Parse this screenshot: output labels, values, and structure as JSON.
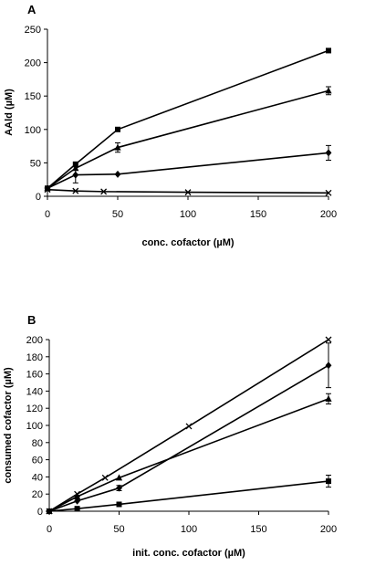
{
  "chart_data": [
    {
      "panel": "A",
      "type": "line",
      "xlabel": "conc. cofactor (µM)",
      "ylabel": "AAld (µM)",
      "xlim": [
        0,
        200
      ],
      "ylim": [
        0,
        250
      ],
      "xticks": [
        0,
        50,
        100,
        150,
        200
      ],
      "yticks": [
        0,
        50,
        100,
        150,
        200,
        250
      ],
      "grid": false,
      "series": [
        {
          "marker": "square",
          "points": [
            [
              0,
              12
            ],
            [
              20,
              48
            ],
            [
              50,
              100
            ],
            [
              200,
              218
            ]
          ],
          "errors": [
            0,
            0,
            0,
            0
          ]
        },
        {
          "marker": "triangle",
          "points": [
            [
              0,
              12
            ],
            [
              20,
              42
            ],
            [
              50,
              73
            ],
            [
              200,
              158
            ]
          ],
          "errors": [
            0,
            0,
            7,
            6
          ]
        },
        {
          "marker": "diamond",
          "points": [
            [
              0,
              12
            ],
            [
              20,
              32
            ],
            [
              50,
              33
            ],
            [
              200,
              65
            ]
          ],
          "errors": [
            0,
            12,
            0,
            11
          ]
        },
        {
          "marker": "x",
          "points": [
            [
              0,
              10
            ],
            [
              20,
              8
            ],
            [
              40,
              7
            ],
            [
              100,
              6
            ],
            [
              200,
              5
            ]
          ],
          "errors": [
            0,
            0,
            0,
            0,
            0
          ]
        }
      ]
    },
    {
      "panel": "B",
      "type": "line",
      "xlabel": "init. conc. cofactor (µM)",
      "ylabel": "consumed cofactor (µM)",
      "xlim": [
        0,
        200
      ],
      "ylim": [
        0,
        200
      ],
      "xticks": [
        0,
        50,
        100,
        150,
        200
      ],
      "yticks": [
        0,
        20,
        40,
        60,
        80,
        100,
        120,
        140,
        160,
        180,
        200
      ],
      "grid": false,
      "series": [
        {
          "marker": "x",
          "points": [
            [
              0,
              0
            ],
            [
              20,
              20
            ],
            [
              40,
              39
            ],
            [
              100,
              99
            ],
            [
              200,
              200
            ]
          ],
          "errors": [
            0,
            0,
            0,
            0,
            0
          ]
        },
        {
          "marker": "diamond",
          "points": [
            [
              0,
              0
            ],
            [
              20,
              12
            ],
            [
              50,
              27
            ],
            [
              200,
              170
            ]
          ],
          "errors": [
            0,
            0,
            3,
            26
          ]
        },
        {
          "marker": "triangle",
          "points": [
            [
              0,
              0
            ],
            [
              20,
              17
            ],
            [
              50,
              39
            ],
            [
              200,
              131
            ]
          ],
          "errors": [
            0,
            0,
            0,
            6
          ]
        },
        {
          "marker": "square",
          "points": [
            [
              0,
              0
            ],
            [
              20,
              3
            ],
            [
              50,
              8
            ],
            [
              200,
              35
            ]
          ],
          "errors": [
            0,
            0,
            0,
            7
          ]
        }
      ]
    }
  ]
}
